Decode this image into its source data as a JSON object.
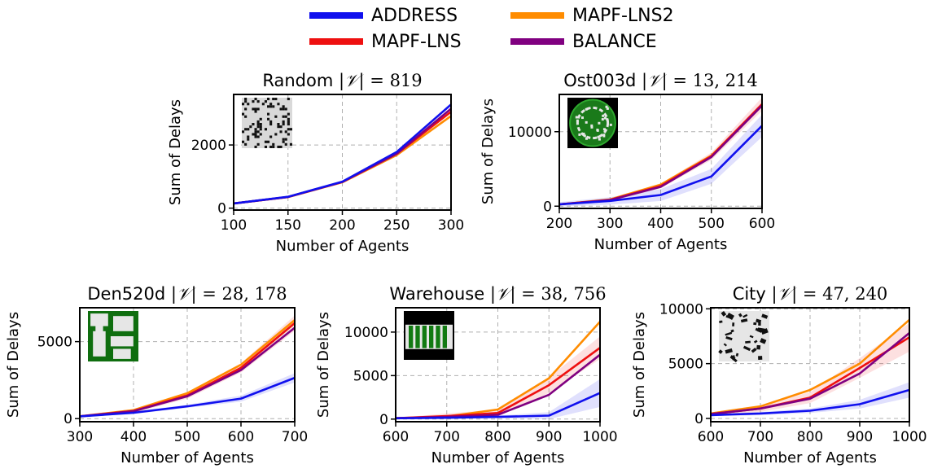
{
  "legend": [
    {
      "name": "ADDRESS",
      "color": "#1010ee"
    },
    {
      "name": "MAPF-LNS",
      "color": "#ee1010"
    },
    {
      "name": "MAPF-LNS2",
      "color": "#ff8c00"
    },
    {
      "name": "BALANCE",
      "color": "#800080"
    }
  ],
  "chart_data": [
    {
      "type": "line",
      "title": "Random | 𝒱 | = 819",
      "title_name": "Random",
      "title_value": "819",
      "xlabel": "Number of Agents",
      "ylabel": "Sum of Delays",
      "x": [
        100,
        150,
        200,
        250,
        300
      ],
      "xlim": [
        100,
        300
      ],
      "ylim": [
        -60,
        3600
      ],
      "xticks": [
        100,
        150,
        200,
        250,
        300
      ],
      "yticks": [
        0,
        2000
      ],
      "ytick_labels": [
        "0",
        "2000"
      ],
      "grid": true,
      "inset_map": "random-grid-map",
      "series": [
        {
          "name": "ADDRESS",
          "values": [
            150,
            360,
            840,
            1780,
            3280
          ]
        },
        {
          "name": "MAPF-LNS",
          "values": [
            150,
            355,
            830,
            1720,
            3050
          ]
        },
        {
          "name": "MAPF-LNS2",
          "values": [
            150,
            350,
            820,
            1680,
            2920
          ]
        },
        {
          "name": "BALANCE",
          "values": [
            150,
            355,
            830,
            1720,
            3150
          ]
        }
      ]
    },
    {
      "type": "line",
      "title": "Ost003d",
      "title_name": "Ost003d",
      "title_value": "13, 214",
      "xlabel": "Number of Agents",
      "ylabel": "Sum of Delays",
      "x": [
        200,
        300,
        400,
        500,
        600
      ],
      "xlim": [
        200,
        600
      ],
      "ylim": [
        -300,
        15000
      ],
      "xticks": [
        200,
        300,
        400,
        500,
        600
      ],
      "yticks": [
        0,
        10000
      ],
      "ytick_labels": [
        "0",
        "10000"
      ],
      "grid": true,
      "inset_map": "ost003d-map",
      "series": [
        {
          "name": "ADDRESS",
          "values": [
            250,
            700,
            1500,
            4000,
            10800
          ],
          "band": [
            300,
            500,
            800,
            1000,
            1500
          ]
        },
        {
          "name": "MAPF-LNS",
          "values": [
            250,
            850,
            2700,
            6700,
            13700
          ],
          "band": [
            100,
            200,
            300,
            500,
            900
          ]
        },
        {
          "name": "MAPF-LNS2",
          "values": [
            250,
            900,
            2900,
            6800,
            13600
          ]
        },
        {
          "name": "BALANCE",
          "values": [
            250,
            830,
            2600,
            6600,
            13500
          ]
        }
      ]
    },
    {
      "type": "line",
      "title": "Den520d",
      "title_name": "Den520d",
      "title_value": "28, 178",
      "xlabel": "Number of Agents",
      "ylabel": "Sum of Delays",
      "x": [
        300,
        400,
        500,
        600,
        700
      ],
      "xlim": [
        300,
        700
      ],
      "ylim": [
        -200,
        7200
      ],
      "xticks": [
        300,
        400,
        500,
        600,
        700
      ],
      "yticks": [
        0,
        5000
      ],
      "ytick_labels": [
        "0",
        "5000"
      ],
      "grid": true,
      "inset_map": "den520d-map",
      "series": [
        {
          "name": "ADDRESS",
          "values": [
            150,
            380,
            800,
            1300,
            2650
          ],
          "band": [
            50,
            80,
            100,
            200,
            300
          ]
        },
        {
          "name": "MAPF-LNS",
          "values": [
            150,
            500,
            1500,
            3300,
            6200
          ],
          "band": [
            80,
            120,
            200,
            300,
            500
          ]
        },
        {
          "name": "MAPF-LNS2",
          "values": [
            150,
            550,
            1650,
            3500,
            6400
          ]
        },
        {
          "name": "BALANCE",
          "values": [
            150,
            480,
            1450,
            3150,
            5900
          ]
        }
      ]
    },
    {
      "type": "line",
      "title": "Warehouse",
      "title_name": "Warehouse",
      "title_value": "38, 756",
      "xlabel": "Number of Agents",
      "ylabel": "Sum of Delays",
      "x": [
        600,
        700,
        800,
        900,
        1000
      ],
      "xlim": [
        600,
        1000
      ],
      "ylim": [
        -300,
        12800
      ],
      "xticks": [
        600,
        700,
        800,
        900,
        1000
      ],
      "yticks": [
        0,
        5000,
        10000
      ],
      "ytick_labels": [
        "0",
        "5000",
        "10000"
      ],
      "grid": true,
      "inset_map": "warehouse-map",
      "series": [
        {
          "name": "ADDRESS",
          "values": [
            100,
            150,
            250,
            400,
            3000
          ],
          "band": [
            50,
            50,
            150,
            400,
            1600
          ]
        },
        {
          "name": "MAPF-LNS",
          "values": [
            100,
            350,
            700,
            3900,
            8200
          ],
          "band": [
            50,
            300,
            400,
            900,
            1300
          ]
        },
        {
          "name": "MAPF-LNS2",
          "values": [
            100,
            300,
            1100,
            4700,
            11200
          ]
        },
        {
          "name": "BALANCE",
          "values": [
            100,
            250,
            500,
            2800,
            7400
          ]
        }
      ]
    },
    {
      "type": "line",
      "title": "City",
      "title_name": "City",
      "title_value": "47, 240",
      "xlabel": "Number of Agents",
      "ylabel": "Sum of Delays",
      "x": [
        600,
        700,
        800,
        900,
        1000
      ],
      "xlim": [
        600,
        1000
      ],
      "ylim": [
        -300,
        10100
      ],
      "xticks": [
        600,
        700,
        800,
        900,
        1000
      ],
      "yticks": [
        0,
        5000,
        10000
      ],
      "ytick_labels": [
        "0",
        "5000",
        "10000"
      ],
      "grid": true,
      "inset_map": "city-map",
      "series": [
        {
          "name": "ADDRESS",
          "values": [
            300,
            450,
            700,
            1300,
            2600
          ],
          "band": [
            100,
            150,
            200,
            400,
            700
          ]
        },
        {
          "name": "MAPF-LNS",
          "values": [
            400,
            900,
            1900,
            4600,
            7400
          ],
          "band": [
            150,
            300,
            500,
            900,
            1300
          ]
        },
        {
          "name": "MAPF-LNS2",
          "values": [
            450,
            1100,
            2600,
            5000,
            9000
          ]
        },
        {
          "name": "BALANCE",
          "values": [
            400,
            900,
            1800,
            4100,
            7800
          ]
        }
      ]
    }
  ]
}
